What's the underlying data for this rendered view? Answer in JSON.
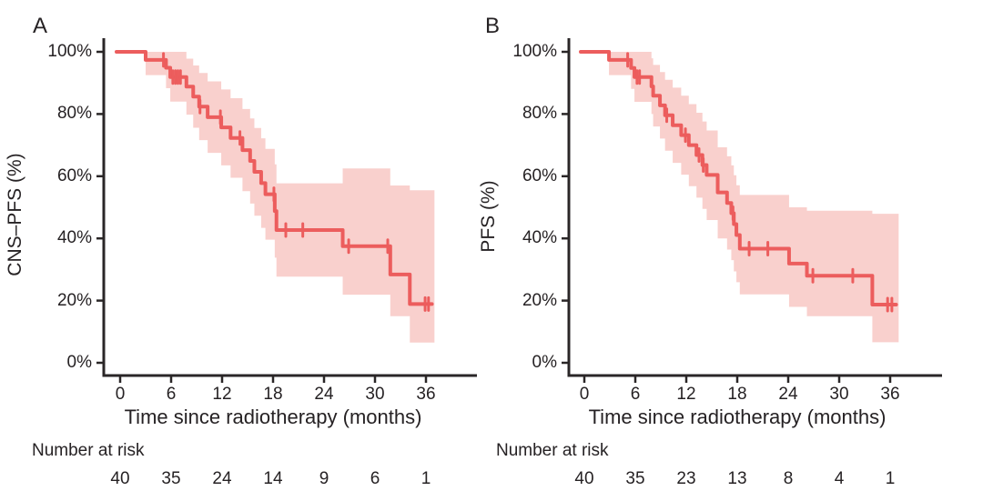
{
  "figure": {
    "background": "#ffffff",
    "text_color": "#262224",
    "axis_color": "#2a2627"
  },
  "chart_data": [
    {
      "type": "line",
      "subtype": "kaplan-meier-step",
      "panel_label": "A",
      "title": "",
      "xlabel": "Time since radiotherapy (months)",
      "ylabel": "CNS–PFS (%)",
      "x_ticks": [
        0,
        6,
        12,
        18,
        24,
        30,
        36
      ],
      "y_tick_labels": [
        "0%",
        "20%",
        "40%",
        "60%",
        "80%",
        "100%"
      ],
      "xlim": [
        0,
        39
      ],
      "ylim": [
        0,
        100
      ],
      "grid": false,
      "legend": "none",
      "series_color": "#ec5d5d",
      "ci_band_color": "#f9d0cd",
      "end_time": 36.7,
      "band_end_time": 37.0,
      "steps": [
        [
          0.0,
          100.0,
          100.0,
          100.0
        ],
        [
          3.0,
          97.4,
          92.5,
          100.0
        ],
        [
          5.4,
          94.9,
          88.3,
          100.0
        ],
        [
          5.9,
          91.9,
          84.0,
          100.0
        ],
        [
          7.8,
          88.8,
          79.8,
          97.8
        ],
        [
          8.6,
          85.6,
          75.6,
          95.6
        ],
        [
          9.3,
          82.4,
          71.6,
          93.2
        ],
        [
          10.3,
          79.0,
          67.5,
          90.5
        ],
        [
          11.9,
          75.7,
          63.5,
          87.9
        ],
        [
          13.0,
          72.3,
          59.5,
          85.1
        ],
        [
          14.4,
          68.4,
          55.2,
          81.6
        ],
        [
          15.3,
          64.9,
          51.2,
          78.6
        ],
        [
          15.8,
          61.4,
          47.3,
          75.5
        ],
        [
          16.6,
          57.8,
          43.4,
          72.2
        ],
        [
          17.1,
          54.2,
          39.6,
          68.8
        ],
        [
          18.2,
          48.8,
          33.8,
          63.8
        ],
        [
          18.4,
          42.7,
          27.7,
          57.7
        ],
        [
          26.2,
          37.5,
          21.9,
          62.5
        ],
        [
          31.8,
          28.4,
          15.0,
          57.0
        ],
        [
          34.1,
          18.9,
          6.5,
          55.5
        ]
      ],
      "censor_marks": [
        [
          5.1,
          97.4
        ],
        [
          6.2,
          91.9
        ],
        [
          6.5,
          91.9
        ],
        [
          6.8,
          91.9
        ],
        [
          7.1,
          91.9
        ],
        [
          9.4,
          82.4
        ],
        [
          11.8,
          79.0
        ],
        [
          14.1,
          72.3
        ],
        [
          18.1,
          54.2
        ],
        [
          19.5,
          42.7
        ],
        [
          21.5,
          42.7
        ],
        [
          26.9,
          37.5
        ],
        [
          31.5,
          37.5
        ],
        [
          35.9,
          18.9
        ],
        [
          36.3,
          18.9
        ]
      ],
      "number_at_risk": {
        "label": "Number at risk",
        "times": [
          0,
          6,
          12,
          18,
          24,
          30,
          36
        ],
        "counts": [
          40,
          35,
          24,
          14,
          9,
          6,
          1
        ]
      }
    },
    {
      "type": "line",
      "subtype": "kaplan-meier-step",
      "panel_label": "B",
      "title": "",
      "xlabel": "Time since radiotherapy (months)",
      "ylabel": "PFS (%)",
      "x_ticks": [
        0,
        6,
        12,
        18,
        24,
        30,
        36
      ],
      "y_tick_labels": [
        "0%",
        "20%",
        "40%",
        "60%",
        "80%",
        "100%"
      ],
      "xlim": [
        0,
        39
      ],
      "ylim": [
        0,
        100
      ],
      "grid": false,
      "legend": "none",
      "series_color": "#ec5d5d",
      "ci_band_color": "#f9d0cd",
      "end_time": 36.7,
      "band_end_time": 37.0,
      "steps": [
        [
          0.0,
          100.0,
          100.0,
          100.0
        ],
        [
          2.9,
          97.4,
          92.5,
          100.0
        ],
        [
          5.5,
          94.8,
          88.1,
          100.0
        ],
        [
          5.9,
          91.9,
          83.9,
          100.0
        ],
        [
          7.9,
          88.9,
          80.0,
          97.9
        ],
        [
          8.1,
          85.9,
          76.0,
          95.8
        ],
        [
          8.9,
          82.8,
          72.1,
          93.5
        ],
        [
          9.5,
          79.6,
          68.2,
          91.0
        ],
        [
          10.4,
          76.4,
          64.3,
          88.5
        ],
        [
          11.4,
          73.2,
          60.5,
          85.9
        ],
        [
          12.3,
          70.0,
          56.8,
          83.2
        ],
        [
          13.2,
          66.8,
          53.1,
          80.4
        ],
        [
          13.9,
          63.6,
          49.5,
          77.6
        ],
        [
          14.4,
          60.4,
          45.9,
          74.7
        ],
        [
          15.7,
          54.8,
          40.0,
          69.3
        ],
        [
          16.8,
          51.4,
          36.4,
          66.4
        ],
        [
          17.3,
          48.1,
          33.0,
          63.5
        ],
        [
          17.6,
          44.6,
          29.4,
          60.3
        ],
        [
          17.9,
          41.1,
          25.9,
          57.1
        ],
        [
          18.3,
          36.7,
          22.0,
          54.0
        ],
        [
          24.1,
          31.9,
          18.0,
          50.0
        ],
        [
          26.2,
          28.0,
          15.0,
          48.9
        ],
        [
          33.9,
          18.7,
          6.6,
          47.9
        ]
      ],
      "censor_marks": [
        [
          5.1,
          97.4
        ],
        [
          6.2,
          91.9
        ],
        [
          6.5,
          91.9
        ],
        [
          9.7,
          79.6
        ],
        [
          11.9,
          73.2
        ],
        [
          13.5,
          66.8
        ],
        [
          14.0,
          63.6
        ],
        [
          17.5,
          48.1
        ],
        [
          19.4,
          36.7
        ],
        [
          21.6,
          36.7
        ],
        [
          26.9,
          28.0
        ],
        [
          31.6,
          28.0
        ],
        [
          35.7,
          18.7
        ],
        [
          36.2,
          18.7
        ]
      ],
      "number_at_risk": {
        "label": "Number at risk",
        "times": [
          0,
          6,
          12,
          18,
          24,
          30,
          36
        ],
        "counts": [
          40,
          35,
          23,
          13,
          8,
          4,
          1
        ]
      }
    }
  ]
}
